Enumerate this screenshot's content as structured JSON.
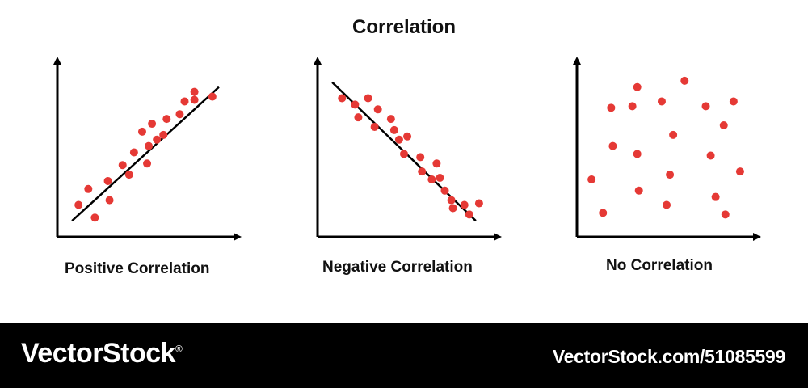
{
  "title": "Correlation",
  "point_color": "#e53935",
  "axis_color": "#000000",
  "panels": [
    {
      "caption": "Positive Correlation",
      "trend_line": true,
      "points": [
        [
          0.1,
          0.17
        ],
        [
          0.2,
          0.09
        ],
        [
          0.16,
          0.27
        ],
        [
          0.28,
          0.32
        ],
        [
          0.37,
          0.42
        ],
        [
          0.44,
          0.5
        ],
        [
          0.41,
          0.36
        ],
        [
          0.53,
          0.54
        ],
        [
          0.58,
          0.58
        ],
        [
          0.62,
          0.61
        ],
        [
          0.55,
          0.68
        ],
        [
          0.49,
          0.63
        ],
        [
          0.64,
          0.71
        ],
        [
          0.72,
          0.74
        ],
        [
          0.75,
          0.82
        ],
        [
          0.81,
          0.83
        ],
        [
          0.81,
          0.88
        ],
        [
          0.92,
          0.85
        ],
        [
          0.52,
          0.43
        ],
        [
          0.29,
          0.2
        ]
      ],
      "line": [
        [
          0.06,
          0.07
        ],
        [
          0.96,
          0.91
        ]
      ]
    },
    {
      "caption": "Negative Correlation",
      "trend_line": true,
      "points": [
        [
          0.12,
          0.84
        ],
        [
          0.2,
          0.8
        ],
        [
          0.28,
          0.84
        ],
        [
          0.22,
          0.72
        ],
        [
          0.34,
          0.77
        ],
        [
          0.32,
          0.66
        ],
        [
          0.42,
          0.71
        ],
        [
          0.44,
          0.64
        ],
        [
          0.47,
          0.58
        ],
        [
          0.52,
          0.6
        ],
        [
          0.5,
          0.49
        ],
        [
          0.6,
          0.47
        ],
        [
          0.61,
          0.38
        ],
        [
          0.7,
          0.43
        ],
        [
          0.67,
          0.33
        ],
        [
          0.72,
          0.34
        ],
        [
          0.75,
          0.26
        ],
        [
          0.79,
          0.2
        ],
        [
          0.8,
          0.15
        ],
        [
          0.87,
          0.17
        ],
        [
          0.9,
          0.11
        ],
        [
          0.96,
          0.18
        ]
      ],
      "line": [
        [
          0.06,
          0.94
        ],
        [
          0.94,
          0.07
        ]
      ]
    },
    {
      "caption": "No Correlation",
      "trend_line": false,
      "points": [
        [
          0.18,
          0.78
        ],
        [
          0.34,
          0.91
        ],
        [
          0.31,
          0.79
        ],
        [
          0.49,
          0.82
        ],
        [
          0.63,
          0.95
        ],
        [
          0.76,
          0.79
        ],
        [
          0.93,
          0.82
        ],
        [
          0.87,
          0.67
        ],
        [
          0.56,
          0.61
        ],
        [
          0.19,
          0.54
        ],
        [
          0.34,
          0.49
        ],
        [
          0.79,
          0.48
        ],
        [
          0.06,
          0.33
        ],
        [
          0.97,
          0.38
        ],
        [
          0.54,
          0.36
        ],
        [
          0.35,
          0.26
        ],
        [
          0.13,
          0.12
        ],
        [
          0.52,
          0.17
        ],
        [
          0.82,
          0.22
        ],
        [
          0.88,
          0.11
        ]
      ]
    }
  ],
  "banner": {
    "brand": "VectorStock",
    "registered_mark": "®",
    "stock_id": "VectorStock.com/51085599"
  }
}
